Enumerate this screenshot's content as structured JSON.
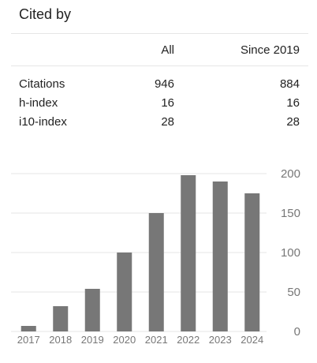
{
  "title": "Cited by",
  "table": {
    "headers": {
      "all": "All",
      "since": "Since 2019"
    },
    "rows": [
      {
        "name": "Citations",
        "all": "946",
        "since": "884"
      },
      {
        "name": "h-index",
        "all": "16",
        "since": "16"
      },
      {
        "name": "i10-index",
        "all": "28",
        "since": "28"
      }
    ]
  },
  "chart_data": {
    "type": "bar",
    "categories": [
      "2017",
      "2018",
      "2019",
      "2020",
      "2021",
      "2022",
      "2023",
      "2024"
    ],
    "values": [
      7,
      32,
      54,
      100,
      150,
      198,
      190,
      175
    ],
    "yticks": [
      "0",
      "50",
      "100",
      "150",
      "200"
    ],
    "ylim": [
      0,
      200
    ],
    "grid": true,
    "bar_color": "#777777",
    "grid_color": "#e6e6e6",
    "tick_color": "#777777"
  }
}
